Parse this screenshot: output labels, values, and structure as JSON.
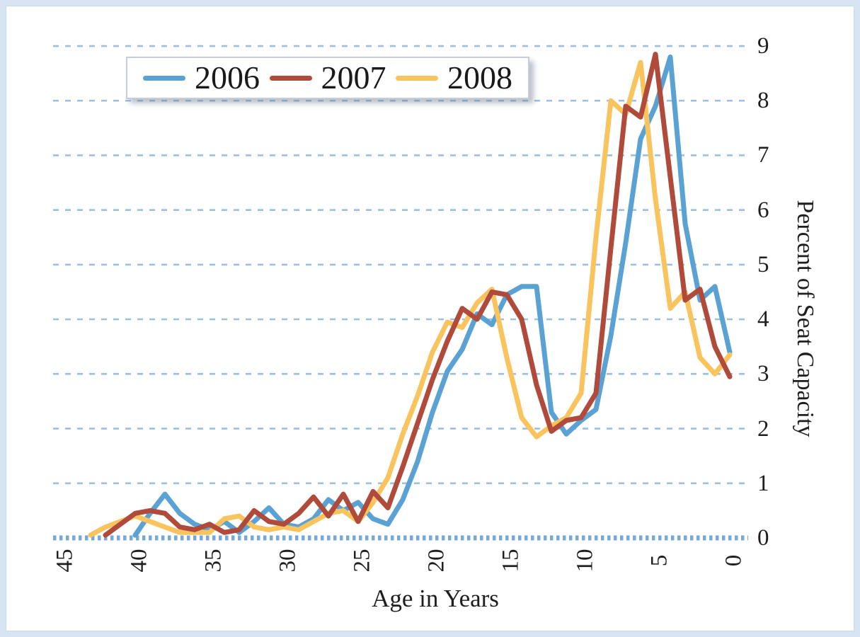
{
  "chart_data": {
    "type": "line",
    "title": "",
    "xlabel": "Age in Years",
    "ylabel": "Percent of Seat Capacity",
    "x_axis": {
      "min": 0,
      "max": 45,
      "reversed": true,
      "ticks": [
        45,
        40,
        35,
        30,
        25,
        20,
        15,
        10,
        5,
        0
      ]
    },
    "y_axis": {
      "min": 0,
      "max": 9,
      "ticks": [
        9,
        8,
        7,
        6,
        5,
        4,
        3,
        2,
        1,
        0
      ]
    },
    "grid": "horizontal-dashed",
    "legend_position": "top-left",
    "series": [
      {
        "name": "2006",
        "color": "#5aa2d3",
        "points": [
          [
            40,
            0.05
          ],
          [
            39,
            0.45
          ],
          [
            38,
            0.8
          ],
          [
            37,
            0.45
          ],
          [
            36,
            0.25
          ],
          [
            35,
            0.15
          ],
          [
            34,
            0.3
          ],
          [
            33,
            0.1
          ],
          [
            32,
            0.3
          ],
          [
            31,
            0.55
          ],
          [
            30,
            0.25
          ],
          [
            29,
            0.2
          ],
          [
            28,
            0.35
          ],
          [
            27,
            0.7
          ],
          [
            26,
            0.5
          ],
          [
            25,
            0.65
          ],
          [
            24,
            0.35
          ],
          [
            23,
            0.25
          ],
          [
            22,
            0.7
          ],
          [
            21,
            1.4
          ],
          [
            20,
            2.3
          ],
          [
            19,
            3.05
          ],
          [
            18,
            3.45
          ],
          [
            17,
            4.1
          ],
          [
            16,
            3.9
          ],
          [
            15,
            4.45
          ],
          [
            14,
            4.6
          ],
          [
            13,
            4.6
          ],
          [
            12,
            2.3
          ],
          [
            11,
            1.9
          ],
          [
            10,
            2.15
          ],
          [
            9,
            2.35
          ],
          [
            8,
            3.7
          ],
          [
            7,
            5.4
          ],
          [
            6,
            7.3
          ],
          [
            5,
            7.9
          ],
          [
            4,
            8.8
          ],
          [
            3,
            5.75
          ],
          [
            2,
            4.35
          ],
          [
            1,
            4.6
          ],
          [
            0,
            3.4
          ]
        ]
      },
      {
        "name": "2007",
        "color": "#b04a3a",
        "points": [
          [
            42,
            0.05
          ],
          [
            41,
            0.25
          ],
          [
            40,
            0.45
          ],
          [
            39,
            0.5
          ],
          [
            38,
            0.45
          ],
          [
            37,
            0.2
          ],
          [
            36,
            0.15
          ],
          [
            35,
            0.25
          ],
          [
            34,
            0.1
          ],
          [
            33,
            0.15
          ],
          [
            32,
            0.5
          ],
          [
            31,
            0.3
          ],
          [
            30,
            0.25
          ],
          [
            29,
            0.45
          ],
          [
            28,
            0.75
          ],
          [
            27,
            0.4
          ],
          [
            26,
            0.8
          ],
          [
            25,
            0.3
          ],
          [
            24,
            0.85
          ],
          [
            23,
            0.55
          ],
          [
            22,
            1.3
          ],
          [
            21,
            2.1
          ],
          [
            20,
            2.9
          ],
          [
            19,
            3.6
          ],
          [
            18,
            4.2
          ],
          [
            17,
            4.0
          ],
          [
            16,
            4.5
          ],
          [
            15,
            4.45
          ],
          [
            14,
            4.0
          ],
          [
            13,
            2.8
          ],
          [
            12,
            1.95
          ],
          [
            11,
            2.15
          ],
          [
            10,
            2.2
          ],
          [
            9,
            2.65
          ],
          [
            8,
            5.3
          ],
          [
            7,
            7.9
          ],
          [
            6,
            7.7
          ],
          [
            5,
            8.85
          ],
          [
            4,
            6.6
          ],
          [
            3,
            4.35
          ],
          [
            2,
            4.55
          ],
          [
            1,
            3.5
          ],
          [
            0,
            2.95
          ]
        ]
      },
      {
        "name": "2008",
        "color": "#f9c45e",
        "points": [
          [
            43,
            0.05
          ],
          [
            42,
            0.2
          ],
          [
            41,
            0.3
          ],
          [
            40,
            0.4
          ],
          [
            39,
            0.3
          ],
          [
            38,
            0.2
          ],
          [
            37,
            0.1
          ],
          [
            36,
            0.1
          ],
          [
            35,
            0.1
          ],
          [
            34,
            0.35
          ],
          [
            33,
            0.4
          ],
          [
            32,
            0.2
          ],
          [
            31,
            0.15
          ],
          [
            30,
            0.2
          ],
          [
            29,
            0.15
          ],
          [
            28,
            0.3
          ],
          [
            27,
            0.45
          ],
          [
            26,
            0.5
          ],
          [
            25,
            0.3
          ],
          [
            24,
            0.65
          ],
          [
            23,
            1.1
          ],
          [
            22,
            1.9
          ],
          [
            21,
            2.6
          ],
          [
            20,
            3.4
          ],
          [
            19,
            3.95
          ],
          [
            18,
            3.85
          ],
          [
            17,
            4.3
          ],
          [
            16,
            4.55
          ],
          [
            15,
            3.3
          ],
          [
            14,
            2.2
          ],
          [
            13,
            1.85
          ],
          [
            12,
            2.05
          ],
          [
            11,
            2.2
          ],
          [
            10,
            2.65
          ],
          [
            9,
            5.5
          ],
          [
            8,
            8.0
          ],
          [
            7,
            7.75
          ],
          [
            6,
            8.7
          ],
          [
            5,
            6.2
          ],
          [
            4,
            4.2
          ],
          [
            3,
            4.5
          ],
          [
            2,
            3.3
          ],
          [
            1,
            3.0
          ],
          [
            0,
            3.35
          ]
        ]
      }
    ]
  },
  "colors": {
    "frame_border": "#d6e4f3",
    "gridline": "#9cc0e0",
    "axis_line": "#78a9d6",
    "text": "#1e1e1e",
    "plot_background": "#ffffff"
  }
}
